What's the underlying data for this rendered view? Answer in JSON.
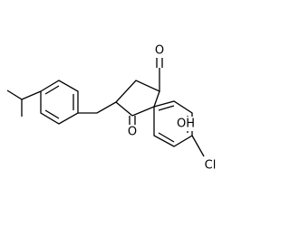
{
  "atoms": {
    "ketone_top": "O",
    "ketone_bottom": "O",
    "hydroxyl": "OH",
    "chlorine": "Cl"
  }
}
